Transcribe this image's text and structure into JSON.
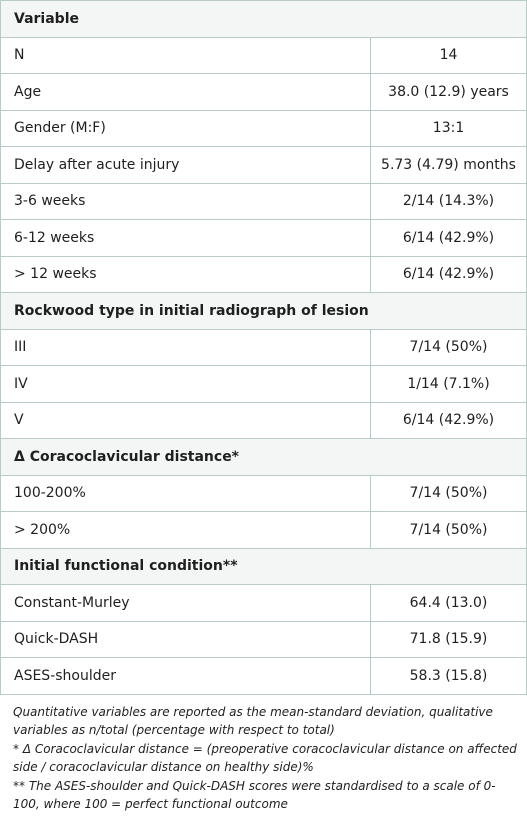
{
  "header": "Variable",
  "rows": [
    {
      "label": "N",
      "value": "14"
    },
    {
      "label": "Age",
      "value": "38.0 (12.9) years"
    },
    {
      "label": "Gender (M:F)",
      "value": "13:1"
    },
    {
      "label": "Delay after acute injury",
      "value": "5.73 (4.79) months"
    },
    {
      "label": "3-6 weeks",
      "value": "2/14 (14.3%)"
    },
    {
      "label": "6-12 weeks",
      "value": "6/14 (42.9%)"
    },
    {
      "label": "> 12 weeks",
      "value": "6/14 (42.9%)"
    }
  ],
  "rockwood": {
    "title": "Rockwood type in initial radiograph of lesion",
    "rows": [
      {
        "label": "III",
        "value": "7/14 (50%)"
      },
      {
        "label": "IV",
        "value": "1/14 (7.1%)"
      },
      {
        "label": "V",
        "value": "6/14 (42.9%)"
      }
    ]
  },
  "cc_distance": {
    "title": "Δ Coracoclavicular distance*",
    "rows": [
      {
        "label": "100-200%",
        "value": "7/14 (50%)"
      },
      {
        "label": "> 200%",
        "value": "7/14 (50%)"
      }
    ]
  },
  "functional": {
    "title": "Initial functional condition**",
    "rows": [
      {
        "label": "Constant-Murley",
        "value": "64.4 (13.0)"
      },
      {
        "label": "Quick-DASH",
        "value": "71.8 (15.9)"
      },
      {
        "label": "ASES-shoulder",
        "value": "58.3 (15.8)"
      }
    ]
  },
  "notes": [
    "Quantitative variables are reported as the mean-standard deviation, qualitative variables as n/total (percentage with respect to total)",
    "* Δ Coracoclavicular distance = (preoperative coracoclavicular distance on affected side / coracoclavicular distance on healthy side)%",
    "** The ASES-shoulder and Quick-DASH scores were standardised to a scale of 0-100, where 100 = perfect functional outcome"
  ]
}
